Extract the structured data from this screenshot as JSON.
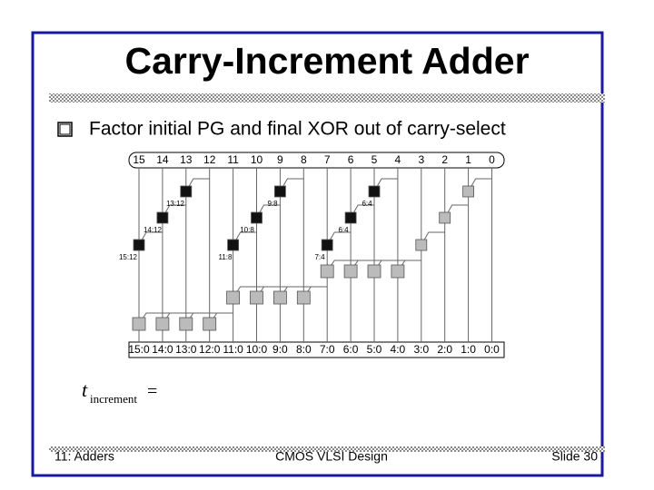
{
  "header": {
    "title": "Carry-Increment Adder"
  },
  "bullet": "Factor initial PG and final XOR out of carry-select",
  "diagram": {
    "top_labels": [
      "15",
      "14",
      "13",
      "12",
      "11",
      "10",
      "9",
      "8",
      "7",
      "6",
      "5",
      "4",
      "3",
      "2",
      "1",
      "0"
    ],
    "bottom_labels": [
      "15:0",
      "14:0",
      "13:0",
      "12:0",
      "11:0",
      "10:0",
      "9:0",
      "8:0",
      "7:0",
      "6:0",
      "5:0",
      "4:0",
      "3:0",
      "2:0",
      "1:0",
      "0:0"
    ],
    "nodes": [
      {
        "label": "13:12"
      },
      {
        "label": "14:12"
      },
      {
        "label": "15:12"
      },
      {
        "label": "9:8"
      },
      {
        "label": "10:8"
      },
      {
        "label": "11:8"
      },
      {
        "label": "6:4"
      },
      {
        "label": "6:4"
      },
      {
        "label": "7:4"
      }
    ]
  },
  "formula": {
    "symbol": "t",
    "subscript": "increment",
    "operator": "="
  },
  "footer": {
    "left": "11: Adders",
    "center": "CMOS VLSI Design",
    "right": "Slide 30"
  }
}
